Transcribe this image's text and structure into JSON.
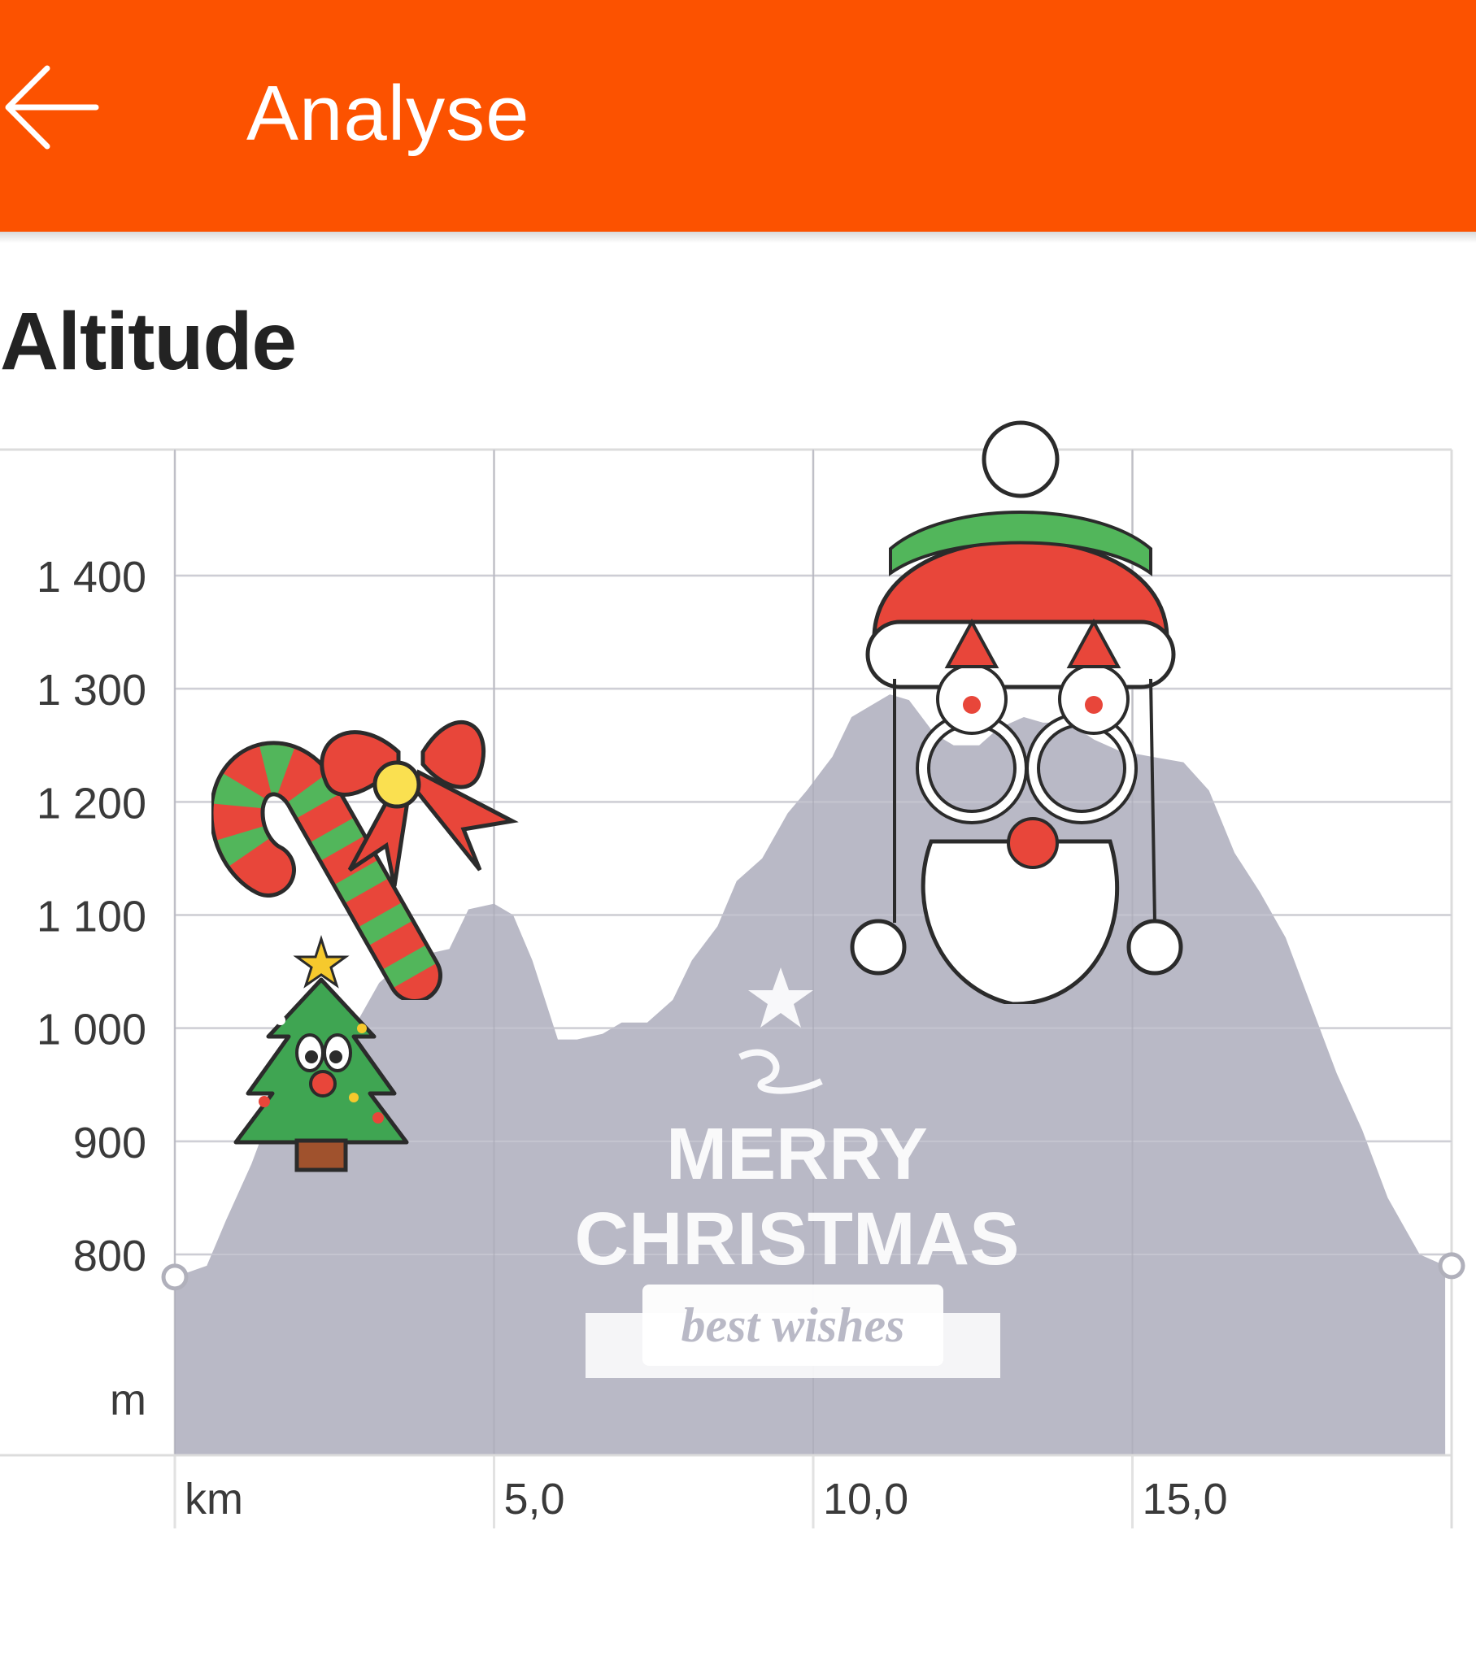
{
  "app_bar": {
    "title": "Analyse",
    "back_icon": "arrow-left-icon",
    "background_color": "#fc5200"
  },
  "section": {
    "title": "Altitude"
  },
  "chart_data": {
    "type": "area",
    "ylabel": "m",
    "xlabel": "km",
    "y_ticks": [
      "1 400",
      "1 300",
      "1 200",
      "1 100",
      "1 000",
      "900",
      "800"
    ],
    "y_tick_values": [
      1400,
      1300,
      1200,
      1100,
      1000,
      900,
      800
    ],
    "x_ticks": [
      "5,0",
      "10,0",
      "15,0"
    ],
    "x_tick_values": [
      5,
      10,
      15
    ],
    "xlim": [
      0,
      20
    ],
    "ylim": [
      700,
      1500
    ],
    "grid": true,
    "fill_color": "#b9b9c6",
    "series": [
      {
        "x": [
          0,
          0.5,
          0.8,
          1.2,
          1.6,
          2.0,
          2.4,
          2.8,
          3.2,
          3.6,
          3.9,
          4.3,
          4.6,
          5.0,
          5.3,
          5.6,
          6.0,
          6.3,
          6.7,
          7.0,
          7.4,
          7.8,
          8.1,
          8.5,
          8.8,
          9.2,
          9.6,
          9.9,
          10.3,
          10.6,
          10.9,
          11.2,
          11.5,
          11.9,
          12.2,
          12.6,
          12.9,
          13.3,
          13.6,
          14.0,
          14.4,
          14.8,
          15.3,
          15.8,
          16.2,
          16.6,
          17.0,
          17.4,
          17.8,
          18.2,
          18.6,
          19.0,
          19.3,
          19.5,
          19.9
        ],
        "y": [
          780,
          790,
          830,
          880,
          940,
          960,
          990,
          1000,
          1040,
          1060,
          1065,
          1070,
          1105,
          1110,
          1100,
          1060,
          990,
          990,
          995,
          1005,
          1005,
          1025,
          1060,
          1090,
          1130,
          1150,
          1190,
          1210,
          1240,
          1275,
          1285,
          1295,
          1290,
          1260,
          1250,
          1250,
          1265,
          1275,
          1270,
          1270,
          1255,
          1245,
          1240,
          1235,
          1210,
          1155,
          1120,
          1080,
          1020,
          960,
          910,
          850,
          820,
          800,
          790
        ]
      }
    ]
  },
  "stickers": {
    "candy": "candy-cane-sticker",
    "tree": "christmas-tree-sticker",
    "santa": "santa-face-sticker",
    "greeting_line1": "MERRY",
    "greeting_line2": "CHRISTMAS",
    "greeting_line3": "best wishes"
  }
}
